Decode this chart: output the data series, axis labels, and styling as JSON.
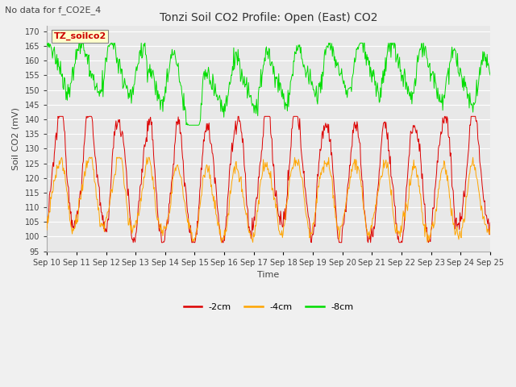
{
  "title": "Tonzi Soil CO2 Profile: Open (East) CO2",
  "subtitle": "No data for f_CO2E_4",
  "ylabel": "Soil CO2 (mV)",
  "xlabel": "Time",
  "box_label": "TZ_soilco2",
  "legend_labels": [
    "-2cm",
    "-4cm",
    "-8cm"
  ],
  "legend_colors": [
    "#dd0000",
    "#ffa500",
    "#00dd00"
  ],
  "line_colors": [
    "#dd0000",
    "#ffa500",
    "#00dd00"
  ],
  "ylim": [
    95,
    172
  ],
  "yticks": [
    95,
    100,
    105,
    110,
    115,
    120,
    125,
    130,
    135,
    140,
    145,
    150,
    155,
    160,
    165,
    170
  ],
  "date_start": 10,
  "date_end": 25,
  "n_points": 720,
  "fig_bg_color": "#f0f0f0",
  "plot_bg_color": "#e8e8e8",
  "grid_color": "#ffffff",
  "title_color": "#333333",
  "figsize": [
    6.4,
    4.8
  ],
  "dpi": 100,
  "title_fontsize": 10,
  "subtitle_fontsize": 8,
  "tick_fontsize": 7,
  "ylabel_fontsize": 8,
  "xlabel_fontsize": 8,
  "legend_fontsize": 8
}
